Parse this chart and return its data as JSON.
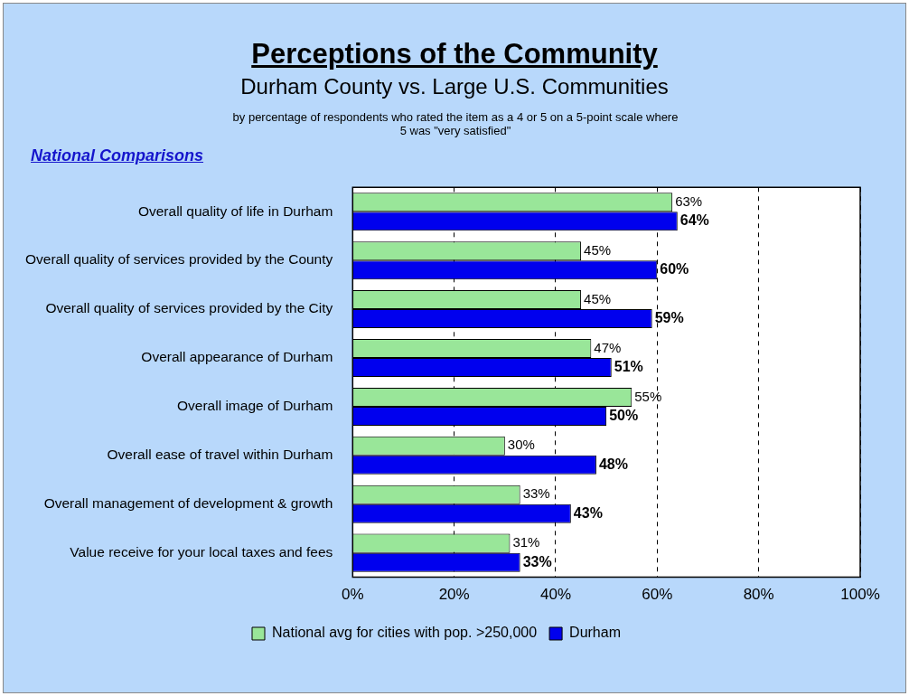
{
  "chart_data": {
    "type": "bar",
    "orientation": "horizontal",
    "title": "Perceptions of the Community",
    "subtitle": "Durham County vs. Large U.S. Communities",
    "annotations": [
      "by percentage of respondents who rated the item as a 4 or 5 on a 5-point scale where 5 was \"very satisfied\"",
      "National Comparisons"
    ],
    "categories": [
      "Overall quality of life in Durham",
      "Overall quality of services provided by the County",
      "Overall quality of services provided by the City",
      "Overall appearance of Durham",
      "Overall image of Durham",
      "Overall ease of travel within Durham",
      "Overall management of development & growth",
      "Value receive for your local taxes and fees"
    ],
    "series": [
      {
        "name": "National avg for cities with pop. >250,000",
        "color": "#99e699",
        "values": [
          63,
          45,
          45,
          47,
          55,
          30,
          33,
          31
        ],
        "value_labels": [
          "63%",
          "45%",
          "45%",
          "47%",
          "55%",
          "30%",
          "33%",
          "31%"
        ]
      },
      {
        "name": "Durham",
        "color": "#0000ee",
        "values": [
          64,
          60,
          59,
          51,
          50,
          48,
          43,
          33
        ],
        "value_labels": [
          "64%",
          "60%",
          "59%",
          "51%",
          "50%",
          "48%",
          "43%",
          "33%"
        ]
      }
    ],
    "xlim": [
      0,
      100
    ],
    "xticks": [
      {
        "value": 0,
        "label": "0%"
      },
      {
        "value": 20,
        "label": "20%"
      },
      {
        "value": 40,
        "label": "40%"
      },
      {
        "value": 60,
        "label": "60%"
      },
      {
        "value": 80,
        "label": "80%"
      },
      {
        "value": 100,
        "label": "100%"
      }
    ],
    "grid": "x",
    "legend": "bottom"
  }
}
